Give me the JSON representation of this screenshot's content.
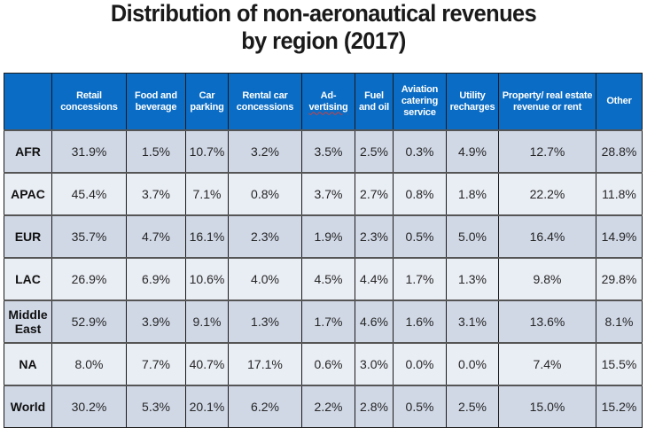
{
  "title": {
    "line1": "Distribution of non-aeronautical revenues",
    "line2": "by region (2017)"
  },
  "colors": {
    "header_bg": "#0a6cc4",
    "row_odd": "#d0d8e6",
    "row_even": "#e9edf4"
  },
  "table": {
    "headers": [
      "",
      "Retail concessions",
      "Food and beverage",
      "Car parking",
      "Rental car concessions",
      "Ad-vertising",
      "Fuel and oil",
      "Aviation catering service",
      "Utility recharges",
      "Property/ real estate revenue or rent",
      "Other"
    ],
    "rows": [
      {
        "region": "AFR",
        "values": [
          "31.9%",
          "1.5%",
          "10.7%",
          "3.2%",
          "3.5%",
          "2.5%",
          "0.3%",
          "4.9%",
          "12.7%",
          "28.8%"
        ]
      },
      {
        "region": "APAC",
        "values": [
          "45.4%",
          "3.7%",
          "7.1%",
          "0.8%",
          "3.7%",
          "2.7%",
          "0.8%",
          "1.8%",
          "22.2%",
          "11.8%"
        ]
      },
      {
        "region": "EUR",
        "values": [
          "35.7%",
          "4.7%",
          "16.1%",
          "2.3%",
          "1.9%",
          "2.3%",
          "0.5%",
          "5.0%",
          "16.4%",
          "14.9%"
        ]
      },
      {
        "region": "LAC",
        "values": [
          "26.9%",
          "6.9%",
          "10.6%",
          "4.0%",
          "4.5%",
          "4.4%",
          "1.7%",
          "1.3%",
          "9.8%",
          "29.8%"
        ]
      },
      {
        "region": "Middle East",
        "values": [
          "52.9%",
          "3.9%",
          "9.1%",
          "1.3%",
          "1.7%",
          "4.6%",
          "1.6%",
          "3.1%",
          "13.6%",
          "8.1%"
        ]
      },
      {
        "region": "NA",
        "values": [
          "8.0%",
          "7.7%",
          "40.7%",
          "17.1%",
          "0.6%",
          "3.0%",
          "0.0%",
          "0.0%",
          "7.4%",
          "15.5%"
        ]
      },
      {
        "region": "World",
        "values": [
          "30.2%",
          "5.3%",
          "20.1%",
          "6.2%",
          "2.2%",
          "2.8%",
          "0.5%",
          "2.5%",
          "15.0%",
          "15.2%"
        ]
      }
    ]
  }
}
